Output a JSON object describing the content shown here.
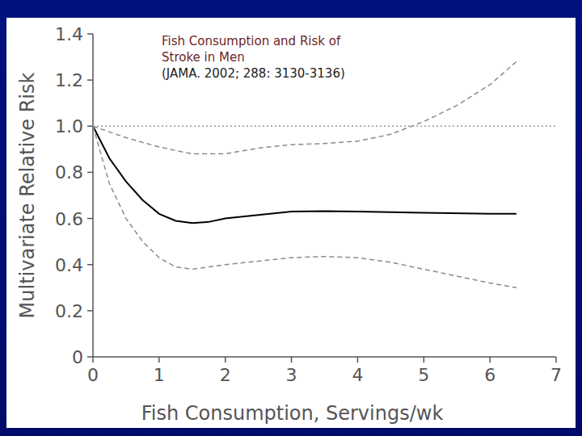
{
  "chart_data": {
    "type": "line",
    "title": "Fish Consumption and Risk of Stroke in Men",
    "subtitle": "(JAMA. 2002; 288: 3130-3136)",
    "x_label": "Fish Consumption, Servings/wk",
    "y_label": "Multivariate Relative Risk",
    "xlim": [
      0,
      7
    ],
    "ylim": [
      0,
      1.4
    ],
    "xticks": [
      0,
      1,
      2,
      3,
      4,
      5,
      6,
      7
    ],
    "yticks": [
      0,
      0.2,
      0.4,
      0.6,
      0.8,
      {
        "value": 1,
        "label": "1.0"
      },
      1.2,
      1.4
    ],
    "grid": false,
    "series": [
      {
        "color": "#000000",
        "line_style": "solid",
        "x": [
          0,
          0.25,
          0.5,
          0.75,
          1,
          1.25,
          1.5,
          1.75,
          2,
          2.5,
          3,
          3.5,
          4,
          5,
          6,
          6.4
        ],
        "values": [
          1.0,
          0.86,
          0.76,
          0.68,
          0.62,
          0.59,
          0.58,
          0.585,
          0.6,
          0.615,
          0.63,
          0.632,
          0.63,
          0.625,
          0.62,
          0.62
        ]
      },
      {
        "color": "#8a8a8a",
        "line_style": "dashed",
        "x": [
          0,
          0.5,
          1,
          1.5,
          2,
          2.5,
          3,
          3.5,
          4,
          4.5,
          5,
          5.5,
          6,
          6.4
        ],
        "values": [
          1.0,
          0.95,
          0.91,
          0.88,
          0.88,
          0.905,
          0.92,
          0.925,
          0.935,
          0.965,
          1.02,
          1.09,
          1.18,
          1.28
        ]
      },
      {
        "color": "#8a8a8a",
        "line_style": "dashed",
        "x": [
          0,
          0.25,
          0.5,
          0.75,
          1,
          1.25,
          1.5,
          1.75,
          2,
          2.5,
          3,
          3.5,
          4,
          4.5,
          5,
          5.5,
          6,
          6.4
        ],
        "values": [
          1.0,
          0.75,
          0.6,
          0.5,
          0.43,
          0.39,
          0.38,
          0.39,
          0.4,
          0.415,
          0.43,
          0.435,
          0.43,
          0.41,
          0.38,
          0.35,
          0.32,
          0.3
        ]
      },
      {
        "color": "#9a9a9a",
        "line_style": "dotted",
        "x": [
          0,
          7
        ],
        "values": [
          1,
          1
        ]
      }
    ]
  }
}
